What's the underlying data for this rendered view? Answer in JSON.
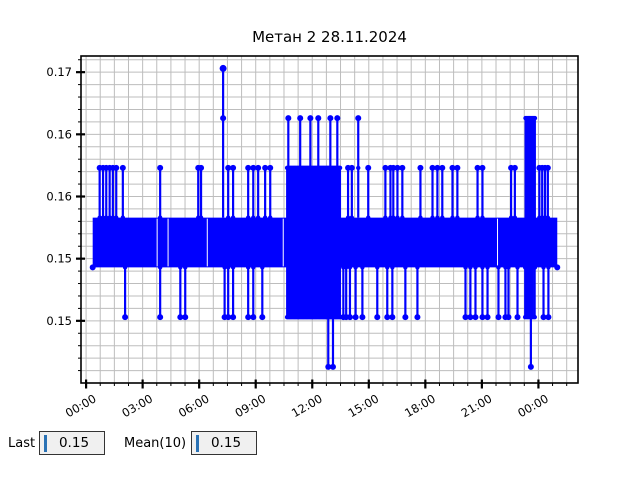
{
  "title": "Метан 2 28.11.2024",
  "colors": {
    "series": "#0000ff",
    "grid": "#bdbdbd",
    "axis": "#000000",
    "plot_bg": "#ffffff",
    "entry_bg": "#f0f0f0",
    "entry_border": "#333333",
    "caret": "#2a72b5"
  },
  "footer": {
    "last_label": "Last",
    "last_value": "0.15",
    "mean_label": "Mean(10)",
    "mean_value": "0.15"
  },
  "chart_data": {
    "type": "line",
    "title": "Метан 2 28.11.2024",
    "xlabel": "",
    "ylabel": "",
    "x_axis": {
      "lim": [
        -0.27,
        26.1
      ],
      "tick_hours": [
        0,
        3,
        6,
        9,
        12,
        15,
        18,
        21,
        24
      ],
      "tick_labels": [
        "00:00",
        "03:00",
        "06:00",
        "09:00",
        "12:00",
        "15:00",
        "18:00",
        "21:00",
        "00:00"
      ],
      "minor_step_hours": 0.75
    },
    "y_axis": {
      "lim": [
        0.1445,
        0.1708
      ],
      "ticks": [
        0.1495,
        0.1545,
        0.1595,
        0.1645,
        0.1695
      ],
      "tick_labels": [
        "0.15",
        "0.15",
        "0.16",
        "0.16",
        "0.17"
      ],
      "minor_step": 0.001,
      "grid_start": 0.1455,
      "grid_count": 26
    },
    "grid": "on",
    "legend": "none",
    "value_levels": [
      0.1458,
      0.1498,
      0.1538,
      0.1578,
      0.1618,
      0.1658,
      0.1698
    ],
    "band": {
      "t0": 0.35,
      "t1": 25.0,
      "low": 0.1538,
      "high": 0.1578
    },
    "band_gaps": [
      3.77,
      4.35,
      6.43,
      10.46,
      21.83
    ],
    "dense_regions": [
      {
        "t0": 10.67,
        "t1": 13.5,
        "low": 0.1498,
        "high": 0.1618,
        "step": 0.07,
        "solid_t0": 11.26,
        "solid_t1": 12.85
      },
      {
        "t0": 23.32,
        "t1": 23.81,
        "low": 0.1538,
        "high": 0.1658,
        "step": 0.07,
        "solid_t0": 23.45,
        "solid_t1": 23.62
      },
      {
        "t0": 23.3,
        "t1": 23.8,
        "low": 0.1498,
        "high": 0.1538,
        "step": 0.1
      }
    ],
    "spikes_up": {
      "level": 0.1618,
      "base": 0.1578,
      "times": [
        0.72,
        0.9,
        1.07,
        1.25,
        1.42,
        1.6,
        1.95,
        3.93,
        5.95,
        6.1,
        7.54,
        7.8,
        8.6,
        8.87,
        9.13,
        9.5,
        9.77,
        13.9,
        14.1,
        14.97,
        15.88,
        16.15,
        16.3,
        16.52,
        16.78,
        17.74,
        18.38,
        18.64,
        18.9,
        19.44,
        19.7,
        20.77,
        21.03,
        22.55,
        22.75,
        24.05,
        24.2,
        24.35,
        24.5
      ]
    },
    "spikes_up_high": {
      "level": 0.1658,
      "base": 0.1578,
      "pass_level": 0.1618,
      "times": [
        10.73,
        11.36,
        11.9,
        12.32,
        12.96,
        13.33,
        14.44
      ]
    },
    "spikes_down": {
      "level": 0.1498,
      "base": 0.1538,
      "times": [
        2.07,
        3.93,
        5.0,
        5.26,
        7.35,
        7.54,
        7.8,
        8.6,
        8.87,
        9.35,
        13.65,
        13.8,
        14.0,
        14.3,
        14.66,
        15.45,
        15.98,
        16.25,
        16.94,
        17.58,
        20.13,
        20.39,
        20.66,
        21.03,
        21.3,
        21.88,
        22.25,
        22.41,
        22.89,
        24.27,
        24.53
      ]
    },
    "spikes_deep": {
      "level": 0.1458,
      "base": 0.1538,
      "pass_level": 0.1498,
      "times": [
        12.85,
        13.1,
        23.6
      ]
    },
    "peak": {
      "t": 7.27,
      "v": 0.1698,
      "base": 0.1578,
      "mid_marker": 0.1658
    },
    "end_markers": [
      [
        0.35,
        0.1538
      ],
      [
        25.0,
        0.1538
      ]
    ],
    "stats": {
      "last": "0.15",
      "mean10": "0.15"
    }
  }
}
